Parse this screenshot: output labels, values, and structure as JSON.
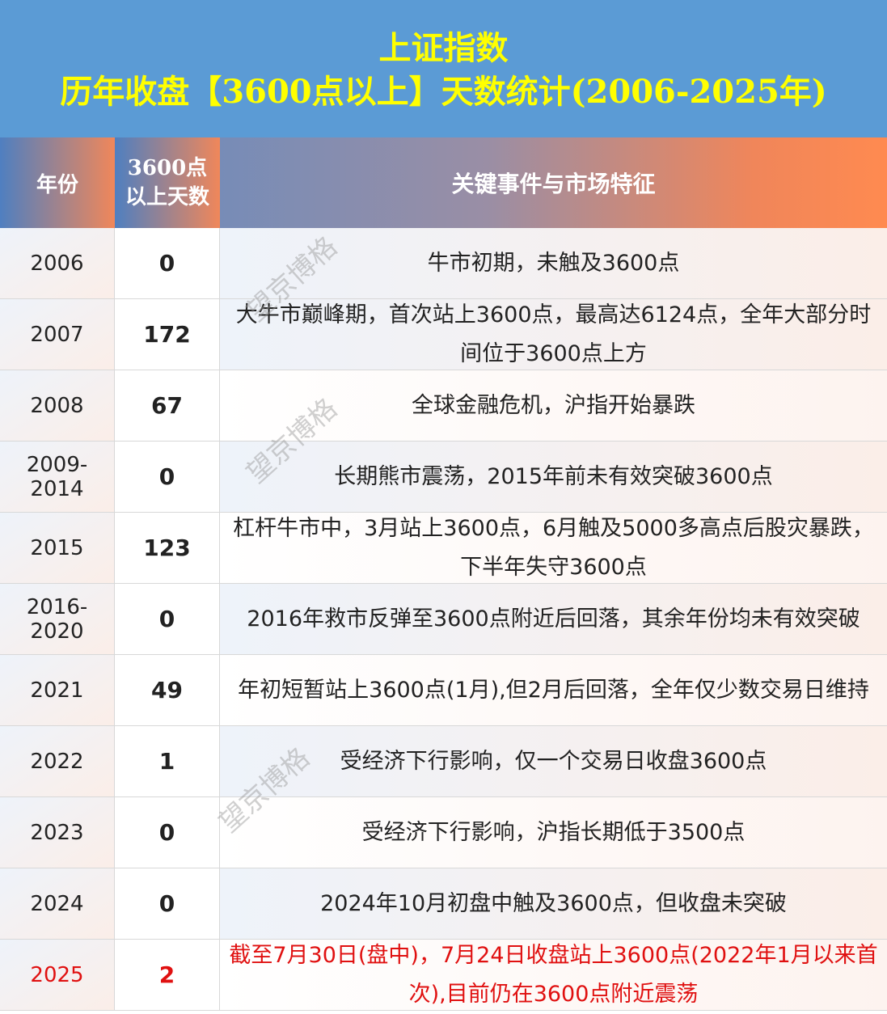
{
  "title": {
    "line1": "上证指数",
    "line2": "历年收盘【3600点以上】天数统计(2006-2025年)"
  },
  "header": {
    "year": "年份",
    "days_line1": "3600点",
    "days_line2": "以上天数",
    "event": "关键事件与市场特征"
  },
  "rows": [
    {
      "year": "2006",
      "days": "0",
      "event": "牛市初期，未触及3600点"
    },
    {
      "year": "2007",
      "days": "172",
      "event": "大牛市巅峰期，首次站上3600点，最高达6124点，全年大部分时间位于3600点上方"
    },
    {
      "year": "2008",
      "days": "67",
      "event": "全球金融危机，沪指开始暴跌"
    },
    {
      "year": "2009-2014",
      "days": "0",
      "event": "长期熊市震荡，2015年前未有效突破3600点"
    },
    {
      "year": "2015",
      "days": "123",
      "event": "杠杆牛市中，3月站上3600点，6月触及5000多高点后股灾暴跌，下半年失守3600点"
    },
    {
      "year": "2016-2020",
      "days": "0",
      "event": "2016年救市反弹至3600点附近后回落，其余年份均未有效突破"
    },
    {
      "year": "2021",
      "days": "49",
      "event": "年初短暂站上3600点(1月),但2月后回落，全年仅少数交易日维持"
    },
    {
      "year": "2022",
      "days": "1",
      "event": "受经济下行影响，仅一个交易日收盘3600点"
    },
    {
      "year": "2023",
      "days": "0",
      "event": "受经济下行影响，沪指长期低于3500点"
    },
    {
      "year": "2024",
      "days": "0",
      "event": "2024年10月初盘中触及3600点，但收盘未突破"
    },
    {
      "year": "2025",
      "days": "2",
      "event": "截至7月30日(盘中)，7月24日收盘站上3600点(2022年1月以来首次),目前仍在3600点附近震荡"
    }
  ],
  "watermark": "望京博格",
  "colors": {
    "title_bg": "#5b9bd5",
    "title_text": "#ffff00",
    "highlight_text": "#e01010"
  }
}
